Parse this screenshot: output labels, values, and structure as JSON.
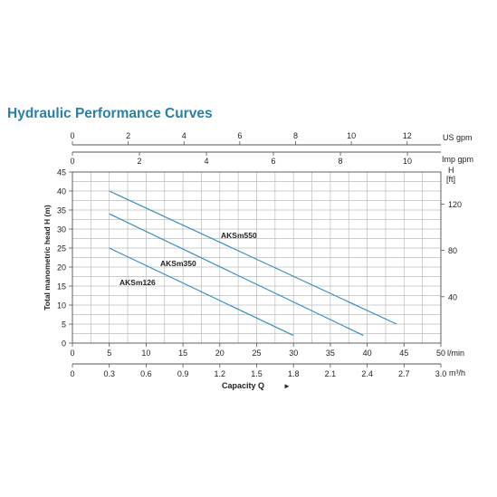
{
  "title": "Hydraulic Performance Curves",
  "colors": {
    "title": "#2a7fa6",
    "curve": "#3a8fc0",
    "grid": "#bdbdbd",
    "axis": "#555555"
  },
  "chart_data": {
    "type": "line",
    "title": "Hydraulic Performance Curves",
    "xlabel": "Capacity Q",
    "ylabel": "Total manometric head H (m)",
    "xlim": [
      0,
      50
    ],
    "ylim": [
      0,
      45
    ],
    "grid": true,
    "legend": "none (series labelled inline)",
    "x_axis_lmin": {
      "unit": "l/min",
      "ticks": [
        0,
        5,
        10,
        15,
        20,
        25,
        30,
        35,
        40,
        45,
        50
      ]
    },
    "x_axis_m3h": {
      "unit": "m³/h",
      "ticks": [
        "0",
        "0.3",
        "0.6",
        "0.9",
        "1.2",
        "1.5",
        "1.8",
        "2.1",
        "2.4",
        "2.7",
        "3.0"
      ],
      "values": [
        0,
        0.3,
        0.6,
        0.9,
        1.2,
        1.5,
        1.8,
        2.1,
        2.4,
        2.7,
        3.0
      ]
    },
    "x_axis_usgpm": {
      "unit": "US gpm",
      "ticks": [
        0,
        2,
        4,
        6,
        8,
        10,
        12
      ]
    },
    "x_axis_impgpm": {
      "unit": "Imp gpm",
      "ticks": [
        0,
        2,
        4,
        6,
        8,
        10
      ]
    },
    "y_axis_m": {
      "ticks": [
        0,
        5,
        10,
        15,
        20,
        25,
        30,
        35,
        40,
        45
      ]
    },
    "y_axis_ft": {
      "label": "H",
      "unit": "[ft]",
      "ticks": [
        40,
        80,
        120
      ]
    },
    "series": [
      {
        "name": "AKSm550",
        "x": [
          5,
          44
        ],
        "y": [
          40,
          5
        ]
      },
      {
        "name": "AKSm350",
        "x": [
          5,
          39.5
        ],
        "y": [
          34,
          2
        ]
      },
      {
        "name": "AKSm126",
        "x": [
          5,
          30
        ],
        "y": [
          25,
          2
        ]
      }
    ]
  }
}
